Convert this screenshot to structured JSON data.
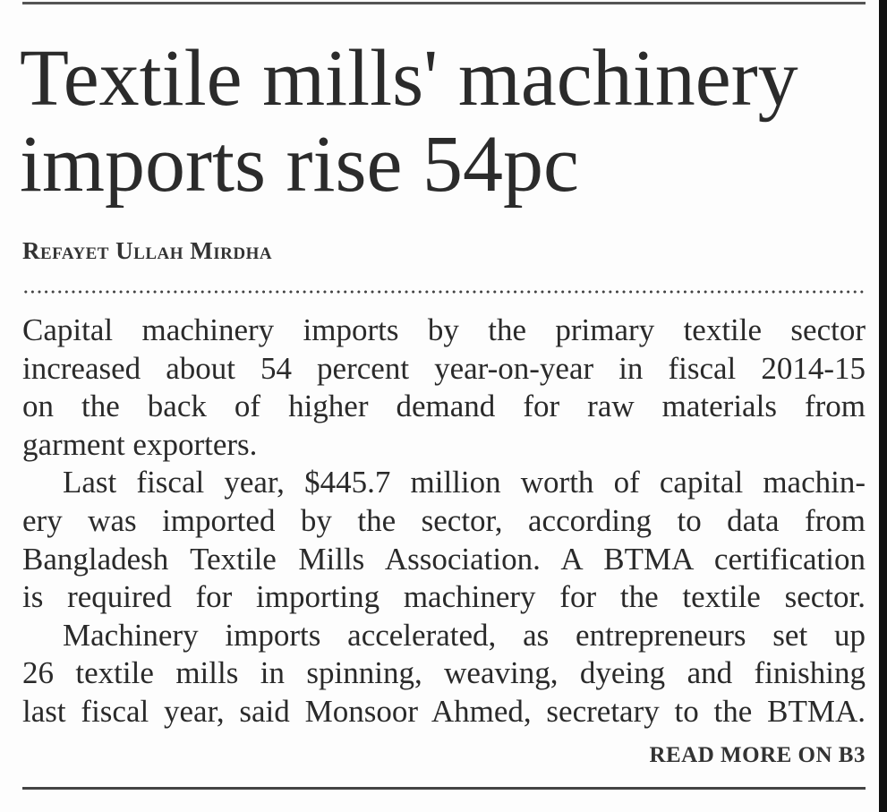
{
  "headline": {
    "lines": [
      "Textile mills' machinery",
      "imports rise 54pc"
    ]
  },
  "byline": "Refayet Ullah Mirdha",
  "paragraphs": [
    {
      "lines": [
        "Capital machinery imports by the primary textile sector",
        "increased about 54 percent year-on-year in fiscal 2014-15",
        "on the back of higher demand for raw materials from",
        "garment exporters."
      ]
    },
    {
      "lines": [
        "Last fiscal year, $445.7 million worth of capital machin-",
        "ery was imported by the sector, according to data from",
        "Bangladesh Textile Mills Association. A BTMA certification",
        "is required for importing machinery for the textile sector."
      ]
    },
    {
      "lines": [
        "Machinery imports accelerated, as entrepreneurs set up",
        "26 textile mills in spinning, weaving, dyeing and finishing",
        "last fiscal year, said Monsoor Ahmed, secretary to the BTMA."
      ]
    }
  ],
  "read_more": "READ MORE ON B3"
}
